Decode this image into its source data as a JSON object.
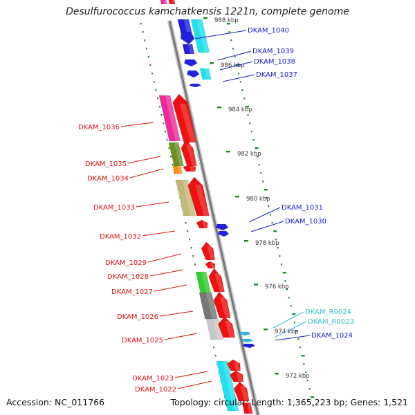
{
  "title": "Desulfurococcus kamchatkensis 1221n, complete genome",
  "footer": {
    "accession": "Accession: NC_011766",
    "summary": "Topology: circular; Length: 1,365,223 bp; Genes: 1,521"
  },
  "colors": {
    "backbone": "#888888",
    "tick_mark": "#1a8a1a",
    "forward_label": "#1a1acc",
    "reverse_label": "#dd1111",
    "rna_label": "#33bbdd"
  },
  "position_ticks": [
    "988 kbp",
    "986 kbp",
    "984 kbp",
    "982 kbp",
    "980 kbp",
    "978 kbp",
    "976 kbp",
    "974 kbp",
    "972 kbp"
  ],
  "forward_genes": [
    {
      "label": "DKAM_1040",
      "color": "#1a1acc"
    },
    {
      "label": "DKAM_1039",
      "color": "#1a1acc"
    },
    {
      "label": "DKAM_1038",
      "color": "#1a1acc"
    },
    {
      "label": "DKAM_1037",
      "color": "#1a1acc"
    },
    {
      "label": "DKAM_1031",
      "color": "#1a1acc"
    },
    {
      "label": "DKAM_1030",
      "color": "#1a1acc"
    },
    {
      "label": "DKAM_R0024",
      "color": "#33bbdd"
    },
    {
      "label": "DKAM_R0023",
      "color": "#33bbdd"
    },
    {
      "label": "DKAM_1024",
      "color": "#1a1acc"
    }
  ],
  "reverse_genes": [
    {
      "label": "DKAM_1036"
    },
    {
      "label": "DKAM_1035"
    },
    {
      "label": "DKAM_1034"
    },
    {
      "label": "DKAM_1033"
    },
    {
      "label": "DKAM_1032"
    },
    {
      "label": "DKAM_1029"
    },
    {
      "label": "DKAM_1028"
    },
    {
      "label": "DKAM_1027"
    },
    {
      "label": "DKAM_1026"
    },
    {
      "label": "DKAM_1025"
    },
    {
      "label": "DKAM_1023"
    },
    {
      "label": "DKAM_1022"
    }
  ]
}
